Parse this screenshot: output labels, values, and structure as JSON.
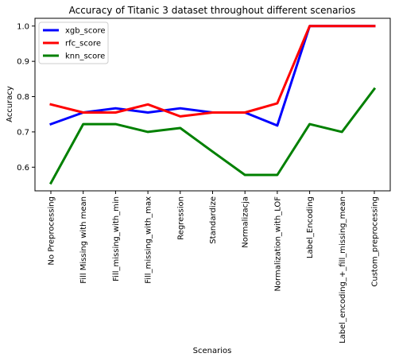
{
  "chart_data": {
    "type": "line",
    "title": "Accuracy of Titanic 3 dataset throughout different scenarios",
    "xlabel": "Scenarios",
    "ylabel": "Accuracy",
    "categories": [
      "No Preprocessing",
      "Fill Missing with mean",
      "Fill_missing_with_min",
      "Fill_missing_with_max",
      "Regression",
      "Standardize",
      "Normalizacja",
      "Normalization_with_LOF",
      "Label_Encoding",
      "Label_encoding_+_fill_missing_mean",
      "Custom_preprocessing"
    ],
    "yticks": [
      "0.6",
      "0.7",
      "0.8",
      "0.9",
      "1.0"
    ],
    "ylim": [
      0.533,
      1.022
    ],
    "grid": false,
    "legend_position": "top-left",
    "series": [
      {
        "name": "xgb_score",
        "color": "#0000ff",
        "values": [
          0.722,
          0.755,
          0.767,
          0.755,
          0.767,
          0.755,
          0.755,
          0.718,
          1.0,
          1.0,
          1.0
        ]
      },
      {
        "name": "rfc_score",
        "color": "#ff0000",
        "values": [
          0.778,
          0.755,
          0.755,
          0.778,
          0.744,
          0.755,
          0.755,
          0.781,
          1.0,
          1.0,
          1.0
        ]
      },
      {
        "name": "knn_score",
        "color": "#008000",
        "values": [
          0.555,
          0.722,
          0.722,
          0.7,
          0.711,
          0.644,
          0.578,
          0.578,
          0.722,
          0.7,
          0.822
        ]
      }
    ]
  }
}
